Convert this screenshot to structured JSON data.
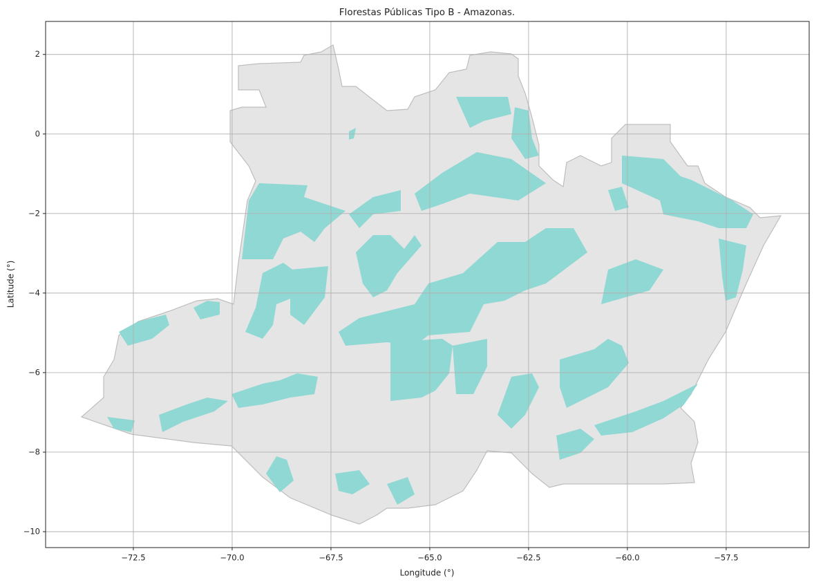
{
  "chart_data": {
    "type": "map",
    "title": "Florestas Públicas Tipo B - Amazonas.",
    "xlabel": "Longitude (°)",
    "ylabel": "Latitude (°)",
    "xlim": [
      -74.72,
      -55.4
    ],
    "ylim": [
      -10.4,
      2.83
    ],
    "xticks": [
      {
        "value": -72.5,
        "label": "−72.5"
      },
      {
        "value": -70,
        "label": "−70.0"
      },
      {
        "value": -67.5,
        "label": "−67.5"
      },
      {
        "value": -65,
        "label": "−65.0"
      },
      {
        "value": -62.5,
        "label": "−62.5"
      },
      {
        "value": -60,
        "label": "−60.0"
      },
      {
        "value": -57.5,
        "label": "−57.5"
      }
    ],
    "yticks": [
      {
        "value": -10,
        "label": "−10"
      },
      {
        "value": -8,
        "label": "−8"
      },
      {
        "value": -6,
        "label": "−6"
      },
      {
        "value": -4,
        "label": "−4"
      },
      {
        "value": -2,
        "label": "−2"
      },
      0,
      2
    ],
    "grid": true
  }
}
